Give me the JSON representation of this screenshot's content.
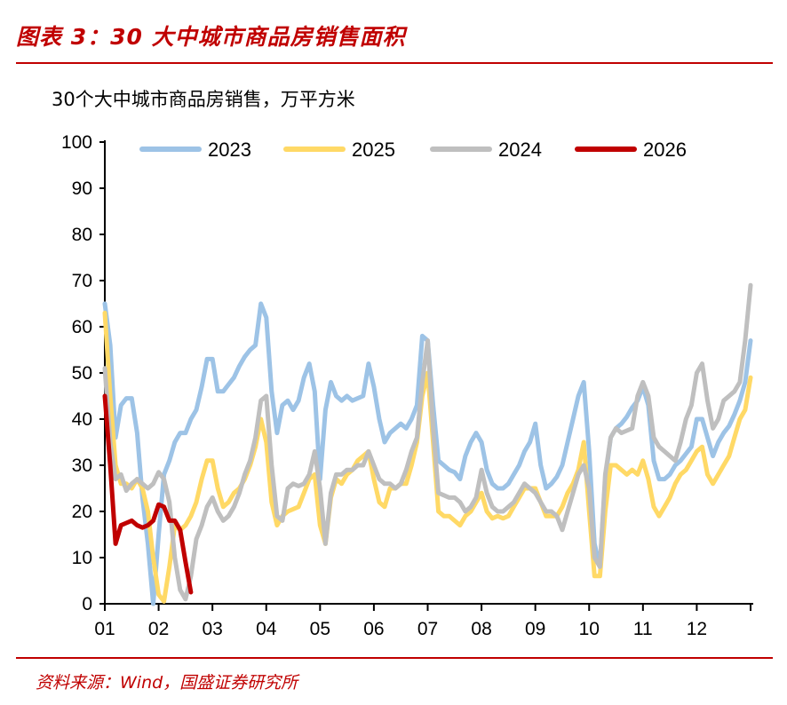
{
  "header": {
    "title": "图表 3：30 大中城市商品房销售面积",
    "subtitle": "30个大中城市商品房销售，万平方米"
  },
  "footer": {
    "source": "资料来源：Wind，国盛证券研究所"
  },
  "colors": {
    "accent": "#C00000"
  },
  "chart_data": {
    "type": "line",
    "ylabel": "30个大中城市商品房销售，万平方米",
    "ylim": [
      0,
      100
    ],
    "yticks": [
      0,
      10,
      20,
      30,
      40,
      50,
      60,
      70,
      80,
      90,
      100
    ],
    "xlim": [
      1,
      13
    ],
    "xticks": [
      1,
      2,
      3,
      4,
      5,
      6,
      7,
      8,
      9,
      10,
      11,
      12
    ],
    "xtick_labels": [
      "01",
      "02",
      "03",
      "04",
      "05",
      "06",
      "07",
      "08",
      "09",
      "10",
      "11",
      "12"
    ],
    "grid": false,
    "legend_placement": "top",
    "x_unit": "month",
    "series": [
      {
        "name": "2023",
        "color": "#9DC3E6",
        "values": [
          65,
          56,
          36,
          43,
          44.5,
          44.5,
          37,
          23,
          13,
          0,
          15,
          28,
          31,
          35,
          37,
          37,
          40,
          42,
          47,
          53,
          53,
          46,
          46,
          47.5,
          49,
          51.5,
          53.5,
          55,
          56,
          65,
          62,
          46,
          37,
          43,
          44,
          42,
          44,
          49,
          52,
          46,
          27,
          42,
          48,
          45,
          44,
          45,
          44,
          44.5,
          45,
          52,
          47,
          40,
          35,
          37,
          38,
          39,
          38,
          40,
          43,
          58,
          57,
          43,
          31,
          30,
          29,
          28.5,
          27,
          32,
          35,
          37,
          35,
          29,
          26,
          25,
          25,
          26,
          28,
          30,
          33,
          35,
          39,
          30,
          25,
          26,
          27.5,
          30,
          35,
          40,
          45,
          48,
          33,
          13,
          8,
          27,
          36,
          38,
          39,
          40.5,
          42.5,
          44,
          47,
          43,
          31,
          27,
          27,
          28,
          30,
          31,
          32.5,
          34,
          40,
          40,
          36,
          32,
          35,
          37,
          38.5,
          41,
          44,
          48,
          57
        ]
      },
      {
        "name": "2025",
        "color": "#FFD966",
        "values": [
          63,
          45,
          30,
          26,
          26,
          25,
          27,
          25,
          20,
          10,
          2,
          0.5,
          8,
          17,
          16,
          17,
          19,
          22,
          27,
          31,
          31,
          25,
          21,
          22,
          24,
          25,
          27,
          30,
          34,
          40,
          35,
          22,
          17,
          19,
          20,
          20.5,
          21,
          24,
          27,
          28,
          17,
          13,
          23,
          27,
          26,
          28,
          29,
          31,
          32,
          33,
          27,
          22,
          21,
          25,
          25,
          26,
          26,
          30,
          35,
          45,
          50,
          35,
          20,
          19,
          19,
          18,
          17,
          19,
          20,
          22,
          24,
          20,
          18.5,
          19,
          18.5,
          19,
          21,
          23,
          25,
          25,
          25,
          22,
          19,
          19,
          19,
          21,
          24,
          26,
          29,
          35,
          20,
          6,
          6,
          20,
          30,
          30,
          29,
          28,
          29,
          28,
          31,
          27,
          21,
          19,
          21,
          23,
          26,
          28,
          29,
          31,
          33,
          34,
          28,
          26,
          28,
          30,
          32,
          36,
          40,
          42,
          49
        ]
      },
      {
        "name": "2024",
        "color": "#BFBFBF",
        "values": [
          51,
          35,
          27,
          28,
          24.5,
          26,
          27,
          26,
          25,
          26,
          28.5,
          27,
          22,
          10,
          3,
          1,
          6,
          14,
          17,
          21,
          23,
          20,
          18,
          19,
          21,
          24,
          28,
          31,
          36,
          44,
          45,
          30,
          19,
          18,
          25,
          26,
          25.5,
          26,
          28,
          33,
          25,
          13,
          24,
          28,
          28,
          29,
          29,
          30,
          30,
          33,
          30,
          27,
          26,
          26,
          25,
          26,
          29,
          33,
          36,
          48,
          57,
          38,
          24,
          23.5,
          23,
          23,
          22,
          20,
          21,
          23,
          29,
          24,
          21,
          20,
          20,
          21,
          22,
          24,
          26,
          25,
          24,
          22,
          20,
          20,
          19,
          16,
          20,
          24,
          28,
          30,
          25,
          10,
          8,
          28,
          36,
          38,
          37,
          37.5,
          38,
          45,
          48,
          45,
          36,
          34,
          33,
          32,
          31,
          35,
          40,
          43,
          50,
          52,
          44,
          38,
          40,
          44,
          45,
          46,
          48,
          57,
          69
        ]
      },
      {
        "name": "2026",
        "color": "#C00000",
        "values": [
          45,
          30,
          13,
          17,
          17.5,
          18,
          17,
          16.5,
          17,
          18,
          21.5,
          21,
          18,
          18,
          16,
          9,
          2.5
        ]
      }
    ],
    "x_step_month": 0.1
  }
}
